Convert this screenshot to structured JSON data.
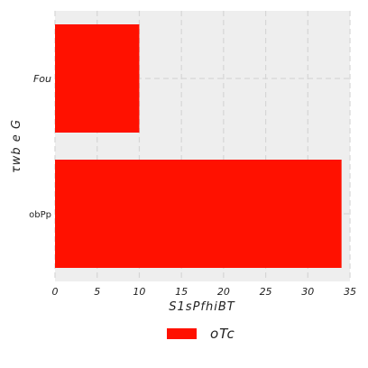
{
  "chart_data": {
    "type": "bar",
    "orientation": "horizontal",
    "categories": [
      "obPp",
      "Fou"
    ],
    "series": [
      {
        "name": "oTc",
        "values": [
          34,
          10
        ],
        "color": "#ff1100"
      }
    ],
    "xlabel": "S1sPfhiBT",
    "ylabel": "τwb  e    G",
    "xlim": [
      0,
      35
    ],
    "xticks": [
      "0",
      "5",
      "10",
      "15",
      "20",
      "25",
      "30",
      "35"
    ],
    "grid": true,
    "legend": "bottom-center",
    "plot_background": "#eeeeee",
    "grid_color": "#d6d6d6"
  }
}
